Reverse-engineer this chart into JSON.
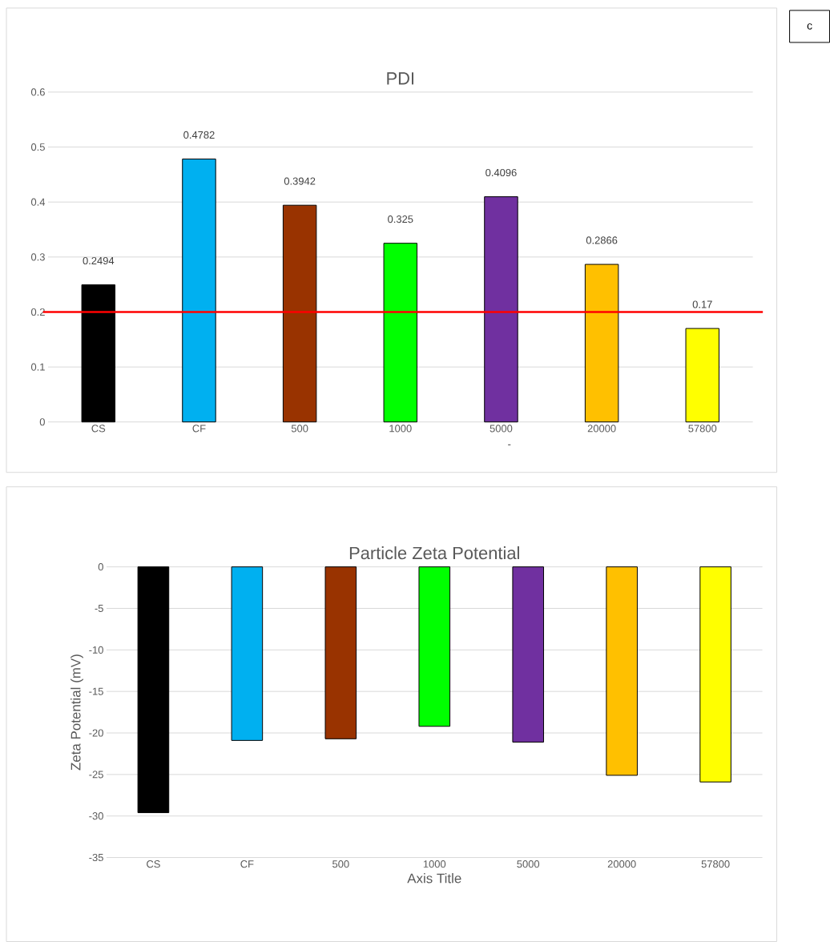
{
  "chart_data": [
    {
      "type": "bar",
      "title": "PDI",
      "categories": [
        "CS",
        "CF",
        "500",
        "1000",
        "5000",
        "20000",
        "57800"
      ],
      "values": [
        0.2494,
        0.4782,
        0.3942,
        0.325,
        0.4096,
        0.2866,
        0.17
      ],
      "colors": [
        "#000000",
        "#00b0f0",
        "#993300",
        "#00ff00",
        "#7030a0",
        "#ffc000",
        "#ffff00"
      ],
      "ylim": [
        0,
        0.6
      ],
      "yticks": [
        0,
        0.1,
        0.2,
        0.3,
        0.4,
        0.5,
        0.6
      ],
      "grid": "y",
      "data_labels": true,
      "ref_lines": [
        {
          "axis": "y",
          "value": 0.2,
          "color": "#ff0000"
        }
      ],
      "annotations": [
        "c",
        "-"
      ]
    },
    {
      "type": "bar",
      "title": "Particle Zeta Potential",
      "xlabel": "Axis Title",
      "ylabel": "Zeta Potential (mV)",
      "categories": [
        "CS",
        "CF",
        "500",
        "1000",
        "5000",
        "20000",
        "57800"
      ],
      "values": [
        -29.6,
        -20.9,
        -20.7,
        -19.2,
        -21.1,
        -25.1,
        -25.9
      ],
      "colors": [
        "#000000",
        "#00b0f0",
        "#993300",
        "#00ff00",
        "#7030a0",
        "#ffc000",
        "#ffff00"
      ],
      "ylim": [
        -35,
        0
      ],
      "yticks": [
        -35,
        -30,
        -25,
        -20,
        -15,
        -10,
        -5,
        0
      ],
      "grid": "y"
    }
  ]
}
